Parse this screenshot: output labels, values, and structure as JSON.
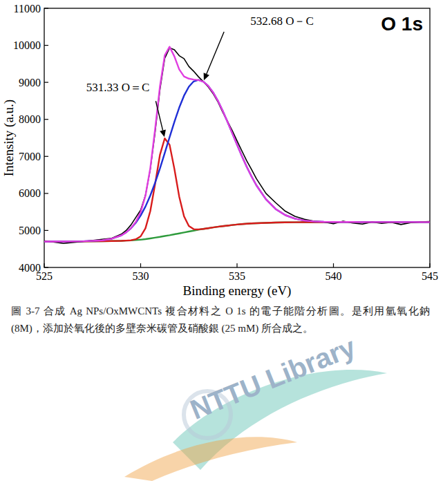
{
  "chart_data": {
    "type": "line",
    "title": "O 1s",
    "x_label": "Binding energy (eV)",
    "y_label": "Intensity (a.u.)",
    "x": [
      525,
      526,
      527,
      528,
      528.5,
      529,
      529.25,
      529.5,
      529.75,
      530,
      530.25,
      530.5,
      530.75,
      531,
      531.25,
      531.5,
      531.75,
      532,
      532.25,
      532.5,
      532.75,
      533,
      533.25,
      533.5,
      533.75,
      534,
      534.25,
      534.5,
      534.75,
      535,
      535.25,
      535.5,
      535.75,
      536,
      536.5,
      537,
      537.5,
      538,
      538.5,
      539,
      539.5,
      540,
      540.5,
      541,
      541.5,
      542,
      542.5,
      543,
      543.5,
      544,
      544.5,
      545
    ],
    "series": [
      {
        "color": "#000000",
        "values": [
          4720,
          4650,
          4700,
          4760,
          4790,
          4900,
          5000,
          5150,
          5350,
          5550,
          5950,
          6650,
          7650,
          8800,
          9650,
          9930,
          9880,
          9720,
          9640,
          9430,
          9300,
          9150,
          9020,
          8880,
          8700,
          8480,
          8200,
          7950,
          7700,
          7420,
          7150,
          6880,
          6650,
          6400,
          6000,
          5750,
          5520,
          5380,
          5300,
          5250,
          5230,
          5180,
          5250,
          5200,
          5170,
          5230,
          5190,
          5220,
          5160,
          5210,
          5230,
          5240
        ]
      },
      {
        "color": "#2e9b3c",
        "values": [
          4700,
          4700,
          4705,
          4710,
          4715,
          4720,
          4725,
          4730,
          4740,
          4750,
          4765,
          4785,
          4805,
          4825,
          4850,
          4870,
          4895,
          4920,
          4945,
          4970,
          4995,
          5020,
          5040,
          5060,
          5080,
          5100,
          5115,
          5130,
          5145,
          5160,
          5170,
          5180,
          5190,
          5195,
          5205,
          5212,
          5217,
          5220,
          5222,
          5223,
          5224,
          5225,
          5225,
          5225,
          5225,
          5225,
          5225,
          5225,
          5225,
          5225,
          5225,
          5225
        ]
      },
      {
        "color": "#d81c1c",
        "values": [
          4700,
          4700,
          4705,
          4710,
          4715,
          4720,
          4726,
          4734,
          4762,
          4840,
          5057,
          5521,
          6252,
          7039,
          7486,
          7316,
          6662,
          5915,
          5381,
          5119,
          5034,
          5028,
          5040,
          5060,
          5080,
          5100,
          5115,
          5130,
          5145,
          5160,
          5170,
          5180,
          5190,
          5195,
          5205,
          5212,
          5217,
          5220,
          5222,
          5223,
          5224,
          5225,
          5225,
          5225,
          5225,
          5225,
          5225,
          5225,
          5225,
          5225,
          5225,
          5225
        ]
      },
      {
        "color": "#1f2fd6",
        "values": [
          4700,
          4700,
          4707,
          4732,
          4775,
          4868,
          4949,
          5058,
          5209,
          5401,
          5645,
          5943,
          6287,
          6672,
          7091,
          7515,
          7933,
          8316,
          8640,
          8881,
          9025,
          9064,
          9020,
          8907,
          8733,
          8507,
          8236,
          7939,
          7629,
          7317,
          7010,
          6722,
          6459,
          6221,
          5841,
          5579,
          5414,
          5319,
          5268,
          5243,
          5232,
          5228,
          5227,
          5226,
          5225,
          5225,
          5225,
          5225,
          5225,
          5225,
          5225,
          5225
        ]
      },
      {
        "color": "#e03ee0",
        "values": [
          4700,
          4700,
          4707,
          4732,
          4775,
          4868,
          4950,
          5062,
          5231,
          5491,
          5937,
          6679,
          7734,
          8886,
          9727,
          9961,
          9700,
          9350,
          9160,
          9100,
          9075,
          9060,
          9020,
          8907,
          8733,
          8507,
          8236,
          7939,
          7629,
          7317,
          7010,
          6722,
          6459,
          6221,
          5841,
          5579,
          5414,
          5319,
          5268,
          5243,
          5232,
          5228,
          5227,
          5226,
          5225,
          5225,
          5225,
          5225,
          5225,
          5225,
          5225,
          5225
        ]
      }
    ],
    "xlim": [
      525,
      545
    ],
    "xticks": [
      525,
      530,
      535,
      540,
      545
    ],
    "ylim": [
      4000,
      11000
    ],
    "yticks": [
      4000,
      5000,
      6000,
      7000,
      8000,
      9000,
      10000,
      11000
    ],
    "grid": false,
    "annotations": [
      {
        "text": "531.33 O＝C",
        "x": 531.25,
        "y": 7486
      },
      {
        "text": "532.68 O－C",
        "x": 533.25,
        "y": 9020
      }
    ]
  },
  "caption": "圖 3-7 合成 Ag NPs/OxMWCNTs 複合材料之 O 1s 的電子能階分析圖。是利用氫氧化鈉 (8M)，添加於氧化後的多壁奈米碳管及硝酸銀 (25 mM) 所合成之。",
  "watermark": "NTTU Library"
}
